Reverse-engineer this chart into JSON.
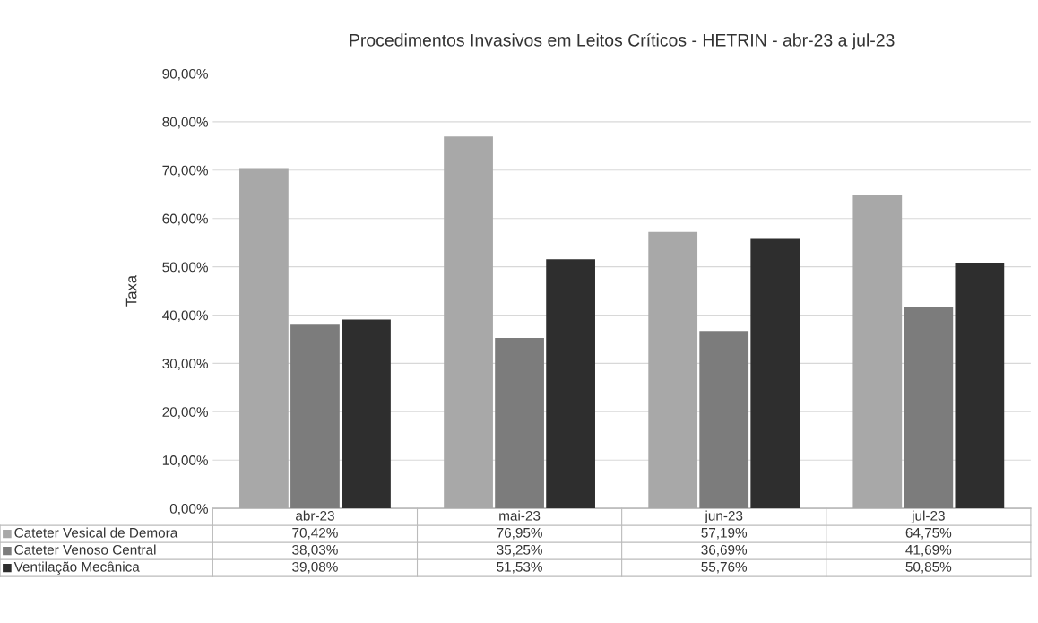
{
  "chart_data": {
    "type": "bar",
    "title": "Procedimentos Invasivos em Leitos Críticos - HETRIN - abr-23 a jul-23",
    "ylabel": "Taxa",
    "categories": [
      "abr-23",
      "mai-23",
      "jun-23",
      "jul-23"
    ],
    "series": [
      {
        "name": "Cateter Vesical de Demora",
        "color": "#a8a8a8",
        "values": [
          70.42,
          76.95,
          57.19,
          64.75
        ],
        "value_labels": [
          "70,42%",
          "76,95%",
          "57,19%",
          "64,75%"
        ]
      },
      {
        "name": "Cateter Venoso Central",
        "color": "#7c7c7c",
        "values": [
          38.03,
          35.25,
          36.69,
          41.69
        ],
        "value_labels": [
          "38,03%",
          "35,25%",
          "36,69%",
          "41,69%"
        ]
      },
      {
        "name": "Ventilação Mecânica",
        "color": "#2e2e2e",
        "values": [
          39.08,
          51.53,
          55.76,
          50.85
        ],
        "value_labels": [
          "39,08%",
          "51,53%",
          "55,76%",
          "50,85%"
        ]
      }
    ],
    "ylim": [
      0,
      90
    ],
    "yticks": [
      {
        "value": 0,
        "label": "0,00%"
      },
      {
        "value": 10,
        "label": "10,00%"
      },
      {
        "value": 20,
        "label": "20,00%"
      },
      {
        "value": 30,
        "label": "30,00%"
      },
      {
        "value": 40,
        "label": "40,00%"
      },
      {
        "value": 50,
        "label": "50,00%"
      },
      {
        "value": 60,
        "label": "60,00%"
      },
      {
        "value": 70,
        "label": "70,00%"
      },
      {
        "value": 80,
        "label": "80,00%"
      },
      {
        "value": 90,
        "label": "90,00%"
      }
    ],
    "grid": "y",
    "legend": "bottom"
  }
}
